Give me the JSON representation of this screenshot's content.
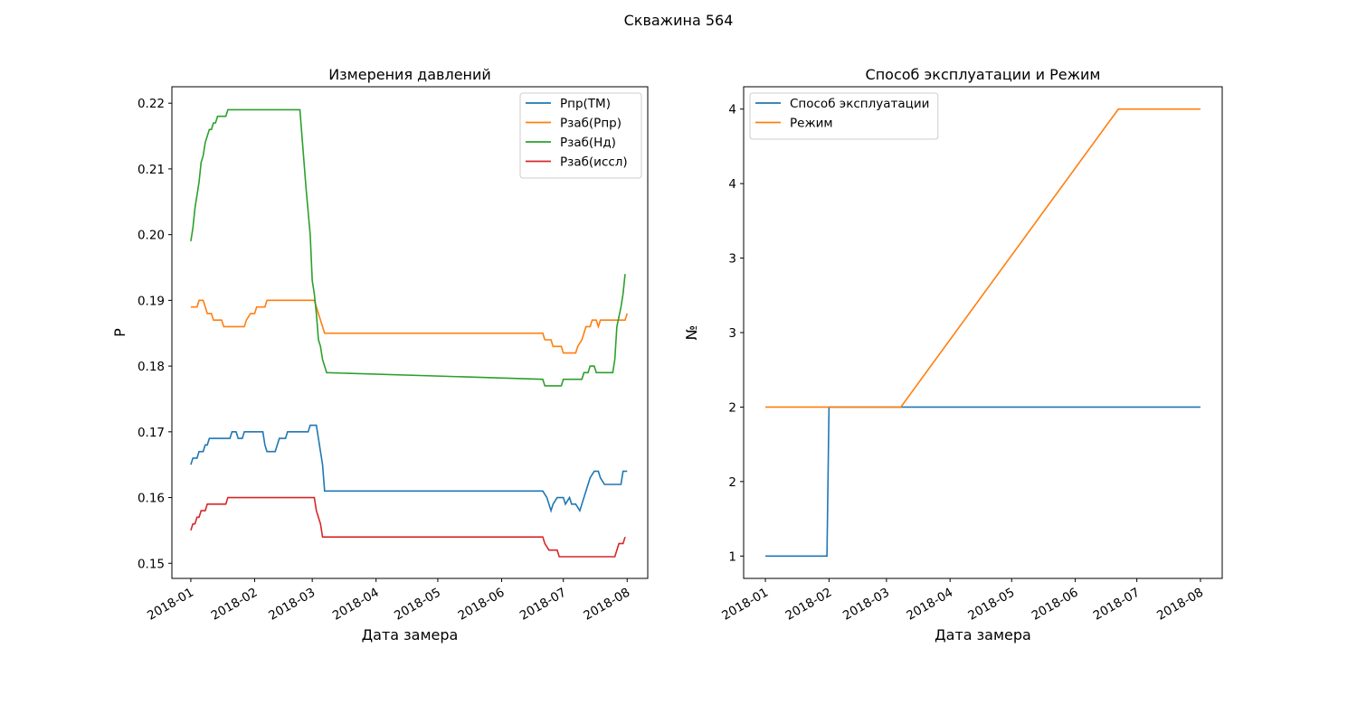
{
  "title": "Скважина 564",
  "chart_data": [
    {
      "type": "line",
      "title": "Измерения давлений",
      "xlabel": "Дата замера",
      "ylabel": "P",
      "xlim": [
        -9.2,
        222
      ],
      "ylim": [
        0.1477,
        0.2225
      ],
      "xticks": [
        {
          "value": 0,
          "label": "2018-01"
        },
        {
          "value": 31,
          "label": "2018-02"
        },
        {
          "value": 59,
          "label": "2018-03"
        },
        {
          "value": 90,
          "label": "2018-04"
        },
        {
          "value": 120,
          "label": "2018-05"
        },
        {
          "value": 151,
          "label": "2018-06"
        },
        {
          "value": 181,
          "label": "2018-07"
        },
        {
          "value": 212,
          "label": "2018-08"
        }
      ],
      "yticks": [
        {
          "value": 0.15,
          "label": "0.15"
        },
        {
          "value": 0.16,
          "label": "0.16"
        },
        {
          "value": 0.17,
          "label": "0.17"
        },
        {
          "value": 0.18,
          "label": "0.18"
        },
        {
          "value": 0.19,
          "label": "0.19"
        },
        {
          "value": 0.2,
          "label": "0.20"
        },
        {
          "value": 0.21,
          "label": "0.21"
        },
        {
          "value": 0.22,
          "label": "0.22"
        }
      ],
      "legend": "upper right",
      "series": [
        {
          "name": "Рпр(ТМ)",
          "color": "#1f77b4",
          "x": [
            0,
            1,
            3,
            4,
            6,
            7,
            8,
            9,
            19,
            20,
            22,
            23,
            25,
            26,
            35,
            36,
            37,
            41,
            42,
            43,
            46,
            47,
            57,
            58,
            61,
            62,
            63,
            64,
            65,
            171,
            173,
            175,
            176,
            178,
            181,
            182,
            184,
            185,
            187,
            189,
            190,
            192,
            194,
            196,
            198,
            199,
            201,
            209,
            210,
            212
          ],
          "values": [
            0.165,
            0.166,
            0.166,
            0.167,
            0.167,
            0.168,
            0.168,
            0.169,
            0.169,
            0.17,
            0.17,
            0.169,
            0.169,
            0.17,
            0.17,
            0.168,
            0.167,
            0.167,
            0.168,
            0.169,
            0.169,
            0.17,
            0.17,
            0.171,
            0.171,
            0.169,
            0.167,
            0.165,
            0.161,
            0.161,
            0.16,
            0.158,
            0.159,
            0.16,
            0.16,
            0.159,
            0.16,
            0.159,
            0.159,
            0.158,
            0.159,
            0.161,
            0.163,
            0.164,
            0.164,
            0.163,
            0.162,
            0.162,
            0.164,
            0.164
          ]
        },
        {
          "name": "Рзаб(Рпр)",
          "color": "#ff7f0e",
          "x": [
            0,
            3,
            4,
            6,
            7,
            8,
            10,
            11,
            15,
            16,
            26,
            27,
            29,
            31,
            32,
            36,
            37,
            60,
            61,
            64,
            65,
            171,
            172,
            175,
            176,
            180,
            181,
            187,
            188,
            190,
            191,
            192,
            194,
            195,
            197,
            198,
            199,
            211,
            212
          ],
          "values": [
            0.189,
            0.189,
            0.19,
            0.19,
            0.189,
            0.188,
            0.188,
            0.187,
            0.187,
            0.186,
            0.186,
            0.187,
            0.188,
            0.188,
            0.189,
            0.189,
            0.19,
            0.19,
            0.189,
            0.186,
            0.185,
            0.185,
            0.184,
            0.184,
            0.183,
            0.183,
            0.182,
            0.182,
            0.183,
            0.184,
            0.185,
            0.186,
            0.186,
            0.187,
            0.187,
            0.186,
            0.187,
            0.187,
            0.188
          ]
        },
        {
          "name": "Рзаб(Нд)",
          "color": "#2ca02c",
          "x": [
            0,
            1,
            2,
            3,
            4,
            5,
            6,
            7,
            8,
            9,
            10,
            11,
            12,
            13,
            17,
            18,
            53,
            54,
            56,
            58,
            59,
            60,
            61,
            62,
            63,
            64,
            65,
            66,
            171,
            172,
            180,
            181,
            190,
            191,
            193,
            194,
            196,
            197,
            205,
            206,
            207,
            209,
            210,
            211
          ],
          "values": [
            0.199,
            0.201,
            0.204,
            0.206,
            0.208,
            0.211,
            0.212,
            0.214,
            0.215,
            0.216,
            0.216,
            0.217,
            0.217,
            0.218,
            0.218,
            0.219,
            0.219,
            0.215,
            0.207,
            0.2,
            0.193,
            0.191,
            0.188,
            0.184,
            0.183,
            0.181,
            0.18,
            0.179,
            0.178,
            0.177,
            0.177,
            0.178,
            0.178,
            0.179,
            0.179,
            0.18,
            0.18,
            0.179,
            0.179,
            0.181,
            0.186,
            0.189,
            0.191,
            0.194
          ]
        },
        {
          "name": "Рзаб(иссл)",
          "color": "#d62728",
          "x": [
            0,
            1,
            2,
            3,
            4,
            5,
            7,
            8,
            17,
            18,
            60,
            61,
            63,
            64,
            171,
            172,
            174,
            178,
            179,
            206,
            207,
            208,
            210,
            211
          ],
          "values": [
            0.155,
            0.156,
            0.156,
            0.157,
            0.157,
            0.158,
            0.158,
            0.159,
            0.159,
            0.16,
            0.16,
            0.158,
            0.156,
            0.154,
            0.154,
            0.153,
            0.152,
            0.152,
            0.151,
            0.151,
            0.152,
            0.153,
            0.153,
            0.154
          ]
        }
      ]
    },
    {
      "type": "line",
      "title": "Способ эксплуатации и Режим",
      "xlabel": "Дата замера",
      "ylabel": "№",
      "xlim": [
        -10.6,
        222.6
      ],
      "ylim": [
        0.85,
        4.15
      ],
      "xticks": [
        {
          "value": 0,
          "label": "2018-01"
        },
        {
          "value": 31,
          "label": "2018-02"
        },
        {
          "value": 59,
          "label": "2018-03"
        },
        {
          "value": 90,
          "label": "2018-04"
        },
        {
          "value": 120,
          "label": "2018-05"
        },
        {
          "value": 151,
          "label": "2018-06"
        },
        {
          "value": 181,
          "label": "2018-07"
        },
        {
          "value": 212,
          "label": "2018-08"
        }
      ],
      "yticks": [
        1,
        {
          "value": 1.5,
          "label": "2"
        },
        2,
        {
          "value": 2.5,
          "label": "3"
        },
        3,
        {
          "value": 3.5,
          "label": "4"
        },
        4
      ],
      "legend": "upper left",
      "series": [
        {
          "name": "Способ эксплуатации",
          "color": "#1f77b4",
          "x": [
            0,
            30,
            31,
            212
          ],
          "values": [
            1,
            1,
            2,
            2
          ]
        },
        {
          "name": "Режим",
          "color": "#ff7f0e",
          "x": [
            0,
            66,
            172,
            212
          ],
          "values": [
            2,
            2,
            4,
            4
          ]
        }
      ]
    }
  ]
}
